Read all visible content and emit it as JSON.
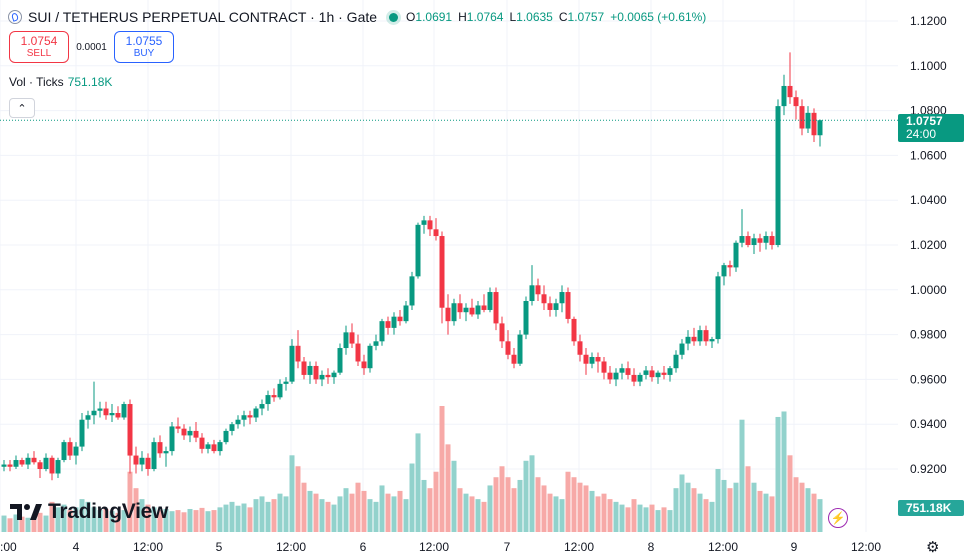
{
  "header": {
    "title": "SUI / TETHERUS PERPETUAL CONTRACT · 1h · Gate",
    "o_label": "O",
    "o": "1.0691",
    "h_label": "H",
    "h": "1.0764",
    "l_label": "L",
    "l": "1.0635",
    "c_label": "C",
    "c": "1.0757",
    "change": "+0.0065 (+0.61%)"
  },
  "trade": {
    "sell_price": "1.0754",
    "sell_label": "SELL",
    "spread": "0.0001",
    "buy_price": "1.0755",
    "buy_label": "BUY"
  },
  "volume_legend": {
    "label": "Vol · Ticks",
    "value": "751.18K"
  },
  "collapse_icon": "chevron-up-icon",
  "price_label": {
    "price": "1.0757",
    "countdown": "24:00"
  },
  "volume_label": "751.18K",
  "logo_text": "TradingView",
  "colors": {
    "up": "#089981",
    "down": "#f23645",
    "up_vol": "#92d2cc",
    "down_vol": "#f7a9a7"
  },
  "chart_data": {
    "type": "candlestick",
    "timeframe": "1h",
    "y_axis": {
      "ticks": [
        "1.1200",
        "1.1000",
        "1.0800",
        "1.0600",
        "1.0400",
        "1.0200",
        "1.0000",
        "0.9800",
        "0.9600",
        "0.9400",
        "0.9200"
      ],
      "range": [
        0.904,
        1.12
      ]
    },
    "x_axis": {
      "ticks": [
        ":00",
        "4",
        "12:00",
        "5",
        "12:00",
        "6",
        "12:00",
        "7",
        "12:00",
        "8",
        "12:00",
        "9",
        "12:00"
      ]
    },
    "last_price": 1.0757,
    "candles": [
      [
        0.921,
        0.924,
        0.919,
        0.922
      ],
      [
        0.922,
        0.924,
        0.919,
        0.921
      ],
      [
        0.921,
        0.926,
        0.92,
        0.924
      ],
      [
        0.924,
        0.925,
        0.921,
        0.922
      ],
      [
        0.922,
        0.927,
        0.92,
        0.925
      ],
      [
        0.925,
        0.928,
        0.922,
        0.923
      ],
      [
        0.923,
        0.924,
        0.916,
        0.92
      ],
      [
        0.92,
        0.927,
        0.919,
        0.925
      ],
      [
        0.925,
        0.926,
        0.915,
        0.918
      ],
      [
        0.918,
        0.925,
        0.916,
        0.924
      ],
      [
        0.924,
        0.933,
        0.923,
        0.932
      ],
      [
        0.932,
        0.934,
        0.924,
        0.926
      ],
      [
        0.926,
        0.932,
        0.922,
        0.93
      ],
      [
        0.93,
        0.945,
        0.928,
        0.942
      ],
      [
        0.942,
        0.946,
        0.938,
        0.944
      ],
      [
        0.944,
        0.959,
        0.94,
        0.946
      ],
      [
        0.946,
        0.95,
        0.943,
        0.947
      ],
      [
        0.947,
        0.95,
        0.942,
        0.944
      ],
      [
        0.944,
        0.949,
        0.941,
        0.945
      ],
      [
        0.945,
        0.948,
        0.942,
        0.943
      ],
      [
        0.943,
        0.95,
        0.942,
        0.949
      ],
      [
        0.949,
        0.951,
        0.918,
        0.926
      ],
      [
        0.926,
        0.93,
        0.918,
        0.922
      ],
      [
        0.922,
        0.928,
        0.919,
        0.925
      ],
      [
        0.925,
        0.927,
        0.917,
        0.92
      ],
      [
        0.92,
        0.934,
        0.919,
        0.932
      ],
      [
        0.932,
        0.935,
        0.925,
        0.927
      ],
      [
        0.927,
        0.93,
        0.921,
        0.928
      ],
      [
        0.928,
        0.941,
        0.926,
        0.939
      ],
      [
        0.939,
        0.943,
        0.936,
        0.938
      ],
      [
        0.938,
        0.94,
        0.933,
        0.935
      ],
      [
        0.935,
        0.939,
        0.932,
        0.937
      ],
      [
        0.937,
        0.941,
        0.932,
        0.934
      ],
      [
        0.934,
        0.936,
        0.927,
        0.929
      ],
      [
        0.929,
        0.932,
        0.927,
        0.931
      ],
      [
        0.931,
        0.933,
        0.927,
        0.928
      ],
      [
        0.928,
        0.933,
        0.926,
        0.932
      ],
      [
        0.932,
        0.938,
        0.931,
        0.937
      ],
      [
        0.937,
        0.941,
        0.935,
        0.94
      ],
      [
        0.94,
        0.944,
        0.938,
        0.942
      ],
      [
        0.942,
        0.946,
        0.939,
        0.944
      ],
      [
        0.944,
        0.946,
        0.94,
        0.943
      ],
      [
        0.943,
        0.948,
        0.941,
        0.947
      ],
      [
        0.947,
        0.951,
        0.944,
        0.949
      ],
      [
        0.949,
        0.955,
        0.946,
        0.953
      ],
      [
        0.953,
        0.956,
        0.95,
        0.952
      ],
      [
        0.952,
        0.96,
        0.951,
        0.958
      ],
      [
        0.958,
        0.961,
        0.955,
        0.959
      ],
      [
        0.959,
        0.978,
        0.958,
        0.975
      ],
      [
        0.975,
        0.982,
        0.965,
        0.968
      ],
      [
        0.968,
        0.97,
        0.96,
        0.962
      ],
      [
        0.962,
        0.968,
        0.958,
        0.966
      ],
      [
        0.966,
        0.968,
        0.958,
        0.96
      ],
      [
        0.96,
        0.964,
        0.957,
        0.962
      ],
      [
        0.962,
        0.965,
        0.958,
        0.961
      ],
      [
        0.961,
        0.964,
        0.958,
        0.963
      ],
      [
        0.963,
        0.976,
        0.962,
        0.974
      ],
      [
        0.974,
        0.984,
        0.971,
        0.981
      ],
      [
        0.981,
        0.985,
        0.974,
        0.976
      ],
      [
        0.976,
        0.98,
        0.966,
        0.968
      ],
      [
        0.968,
        0.971,
        0.962,
        0.965
      ],
      [
        0.965,
        0.976,
        0.963,
        0.975
      ],
      [
        0.975,
        0.98,
        0.973,
        0.977
      ],
      [
        0.977,
        0.987,
        0.975,
        0.986
      ],
      [
        0.986,
        0.988,
        0.98,
        0.983
      ],
      [
        0.983,
        0.99,
        0.98,
        0.988
      ],
      [
        0.988,
        0.991,
        0.984,
        0.986
      ],
      [
        0.986,
        0.995,
        0.985,
        0.993
      ],
      [
        0.993,
        1.008,
        0.991,
        1.006
      ],
      [
        1.006,
        1.03,
        1.005,
        1.029
      ],
      [
        1.029,
        1.033,
        1.025,
        1.031
      ],
      [
        1.031,
        1.033,
        1.024,
        1.027
      ],
      [
        1.027,
        1.032,
        1.022,
        1.024
      ],
      [
        1.024,
        1.026,
        0.985,
        0.992
      ],
      [
        0.992,
        0.998,
        0.98,
        0.986
      ],
      [
        0.986,
        0.996,
        0.984,
        0.994
      ],
      [
        0.994,
        0.998,
        0.987,
        0.99
      ],
      [
        0.99,
        0.994,
        0.986,
        0.992
      ],
      [
        0.992,
        0.996,
        0.988,
        0.989
      ],
      [
        0.989,
        0.995,
        0.987,
        0.993
      ],
      [
        0.993,
        0.998,
        0.99,
        0.991
      ],
      [
        0.991,
        1.001,
        0.99,
        0.999
      ],
      [
        0.999,
        1.001,
        0.982,
        0.985
      ],
      [
        0.985,
        0.988,
        0.974,
        0.977
      ],
      [
        0.977,
        0.982,
        0.969,
        0.971
      ],
      [
        0.971,
        0.974,
        0.965,
        0.967
      ],
      [
        0.967,
        0.982,
        0.966,
        0.98
      ],
      [
        0.98,
        0.997,
        0.978,
        0.995
      ],
      [
        0.995,
        1.011,
        0.993,
        1.002
      ],
      [
        1.002,
        1.005,
        0.995,
        0.998
      ],
      [
        0.998,
        1.002,
        0.991,
        0.994
      ],
      [
        0.994,
        0.997,
        0.988,
        0.991
      ],
      [
        0.991,
        0.996,
        0.988,
        0.994
      ],
      [
        0.994,
        1.002,
        0.99,
        0.999
      ],
      [
        0.999,
        1.001,
        0.985,
        0.987
      ],
      [
        0.987,
        0.988,
        0.975,
        0.977
      ],
      [
        0.977,
        0.98,
        0.968,
        0.971
      ],
      [
        0.971,
        0.974,
        0.962,
        0.967
      ],
      [
        0.967,
        0.972,
        0.965,
        0.97
      ],
      [
        0.97,
        0.972,
        0.963,
        0.968
      ],
      [
        0.968,
        0.97,
        0.96,
        0.963
      ],
      [
        0.963,
        0.966,
        0.958,
        0.96
      ],
      [
        0.96,
        0.965,
        0.957,
        0.963
      ],
      [
        0.963,
        0.967,
        0.96,
        0.965
      ],
      [
        0.965,
        0.968,
        0.96,
        0.962
      ],
      [
        0.962,
        0.965,
        0.957,
        0.959
      ],
      [
        0.959,
        0.963,
        0.957,
        0.962
      ],
      [
        0.962,
        0.966,
        0.96,
        0.964
      ],
      [
        0.964,
        0.966,
        0.959,
        0.961
      ],
      [
        0.961,
        0.964,
        0.958,
        0.963
      ],
      [
        0.963,
        0.966,
        0.96,
        0.962
      ],
      [
        0.962,
        0.966,
        0.959,
        0.965
      ],
      [
        0.965,
        0.973,
        0.963,
        0.971
      ],
      [
        0.971,
        0.978,
        0.969,
        0.976
      ],
      [
        0.976,
        0.982,
        0.973,
        0.979
      ],
      [
        0.979,
        0.983,
        0.975,
        0.977
      ],
      [
        0.977,
        0.984,
        0.975,
        0.982
      ],
      [
        0.982,
        0.984,
        0.975,
        0.977
      ],
      [
        0.977,
        0.979,
        0.974,
        0.978
      ],
      [
        0.978,
        1.008,
        0.976,
        1.006
      ],
      [
        1.006,
        1.012,
        1.002,
        1.011
      ],
      [
        1.011,
        1.013,
        1.006,
        1.01
      ],
      [
        1.01,
        1.022,
        1.008,
        1.021
      ],
      [
        1.021,
        1.036,
        1.019,
        1.024
      ],
      [
        1.024,
        1.026,
        1.019,
        1.02
      ],
      [
        1.02,
        1.025,
        1.016,
        1.023
      ],
      [
        1.023,
        1.025,
        1.017,
        1.021
      ],
      [
        1.021,
        1.026,
        1.018,
        1.024
      ],
      [
        1.024,
        1.026,
        1.018,
        1.02
      ],
      [
        1.02,
        1.085,
        1.019,
        1.082
      ],
      [
        1.082,
        1.096,
        1.078,
        1.091
      ],
      [
        1.091,
        1.106,
        1.083,
        1.086
      ],
      [
        1.086,
        1.089,
        1.076,
        1.082
      ],
      [
        1.082,
        1.085,
        1.069,
        1.072
      ],
      [
        1.072,
        1.082,
        1.07,
        1.079
      ],
      [
        1.079,
        1.081,
        1.066,
        1.069
      ],
      [
        1.069,
        1.076,
        1.064,
        1.0757
      ]
    ],
    "volumes": [
      0.3,
      0.25,
      0.32,
      0.28,
      0.26,
      0.3,
      0.35,
      0.3,
      0.55,
      0.45,
      0.5,
      0.4,
      0.45,
      0.6,
      0.55,
      0.45,
      0.4,
      0.42,
      0.38,
      0.35,
      0.4,
      1.1,
      0.8,
      0.6,
      0.5,
      0.45,
      0.4,
      0.42,
      0.38,
      0.4,
      0.36,
      0.42,
      0.4,
      0.44,
      0.38,
      0.4,
      0.45,
      0.5,
      0.55,
      0.48,
      0.52,
      0.45,
      0.6,
      0.65,
      0.55,
      0.6,
      0.7,
      0.65,
      1.4,
      1.2,
      0.9,
      0.75,
      0.7,
      0.6,
      0.55,
      0.5,
      0.65,
      0.8,
      0.7,
      0.9,
      0.75,
      0.6,
      0.55,
      0.85,
      0.7,
      0.65,
      0.75,
      0.6,
      1.25,
      1.8,
      0.95,
      0.8,
      1.1,
      2.3,
      1.6,
      1.3,
      0.8,
      0.7,
      0.65,
      0.6,
      0.55,
      0.85,
      1.0,
      1.2,
      1.0,
      0.8,
      0.95,
      1.3,
      1.4,
      1.0,
      0.85,
      0.7,
      0.65,
      0.6,
      1.1,
      1.0,
      0.9,
      0.85,
      0.75,
      0.65,
      0.7,
      0.6,
      0.55,
      0.5,
      0.45,
      0.6,
      0.5,
      0.45,
      0.5,
      0.4,
      0.45,
      0.4,
      0.8,
      1.05,
      0.9,
      0.8,
      0.7,
      0.6,
      0.55,
      1.15,
      0.95,
      0.8,
      0.9,
      2.05,
      1.2,
      0.9,
      0.75,
      0.7,
      0.65,
      2.1,
      2.2,
      1.4,
      1.0,
      0.9,
      0.8,
      0.7,
      0.6
    ]
  }
}
